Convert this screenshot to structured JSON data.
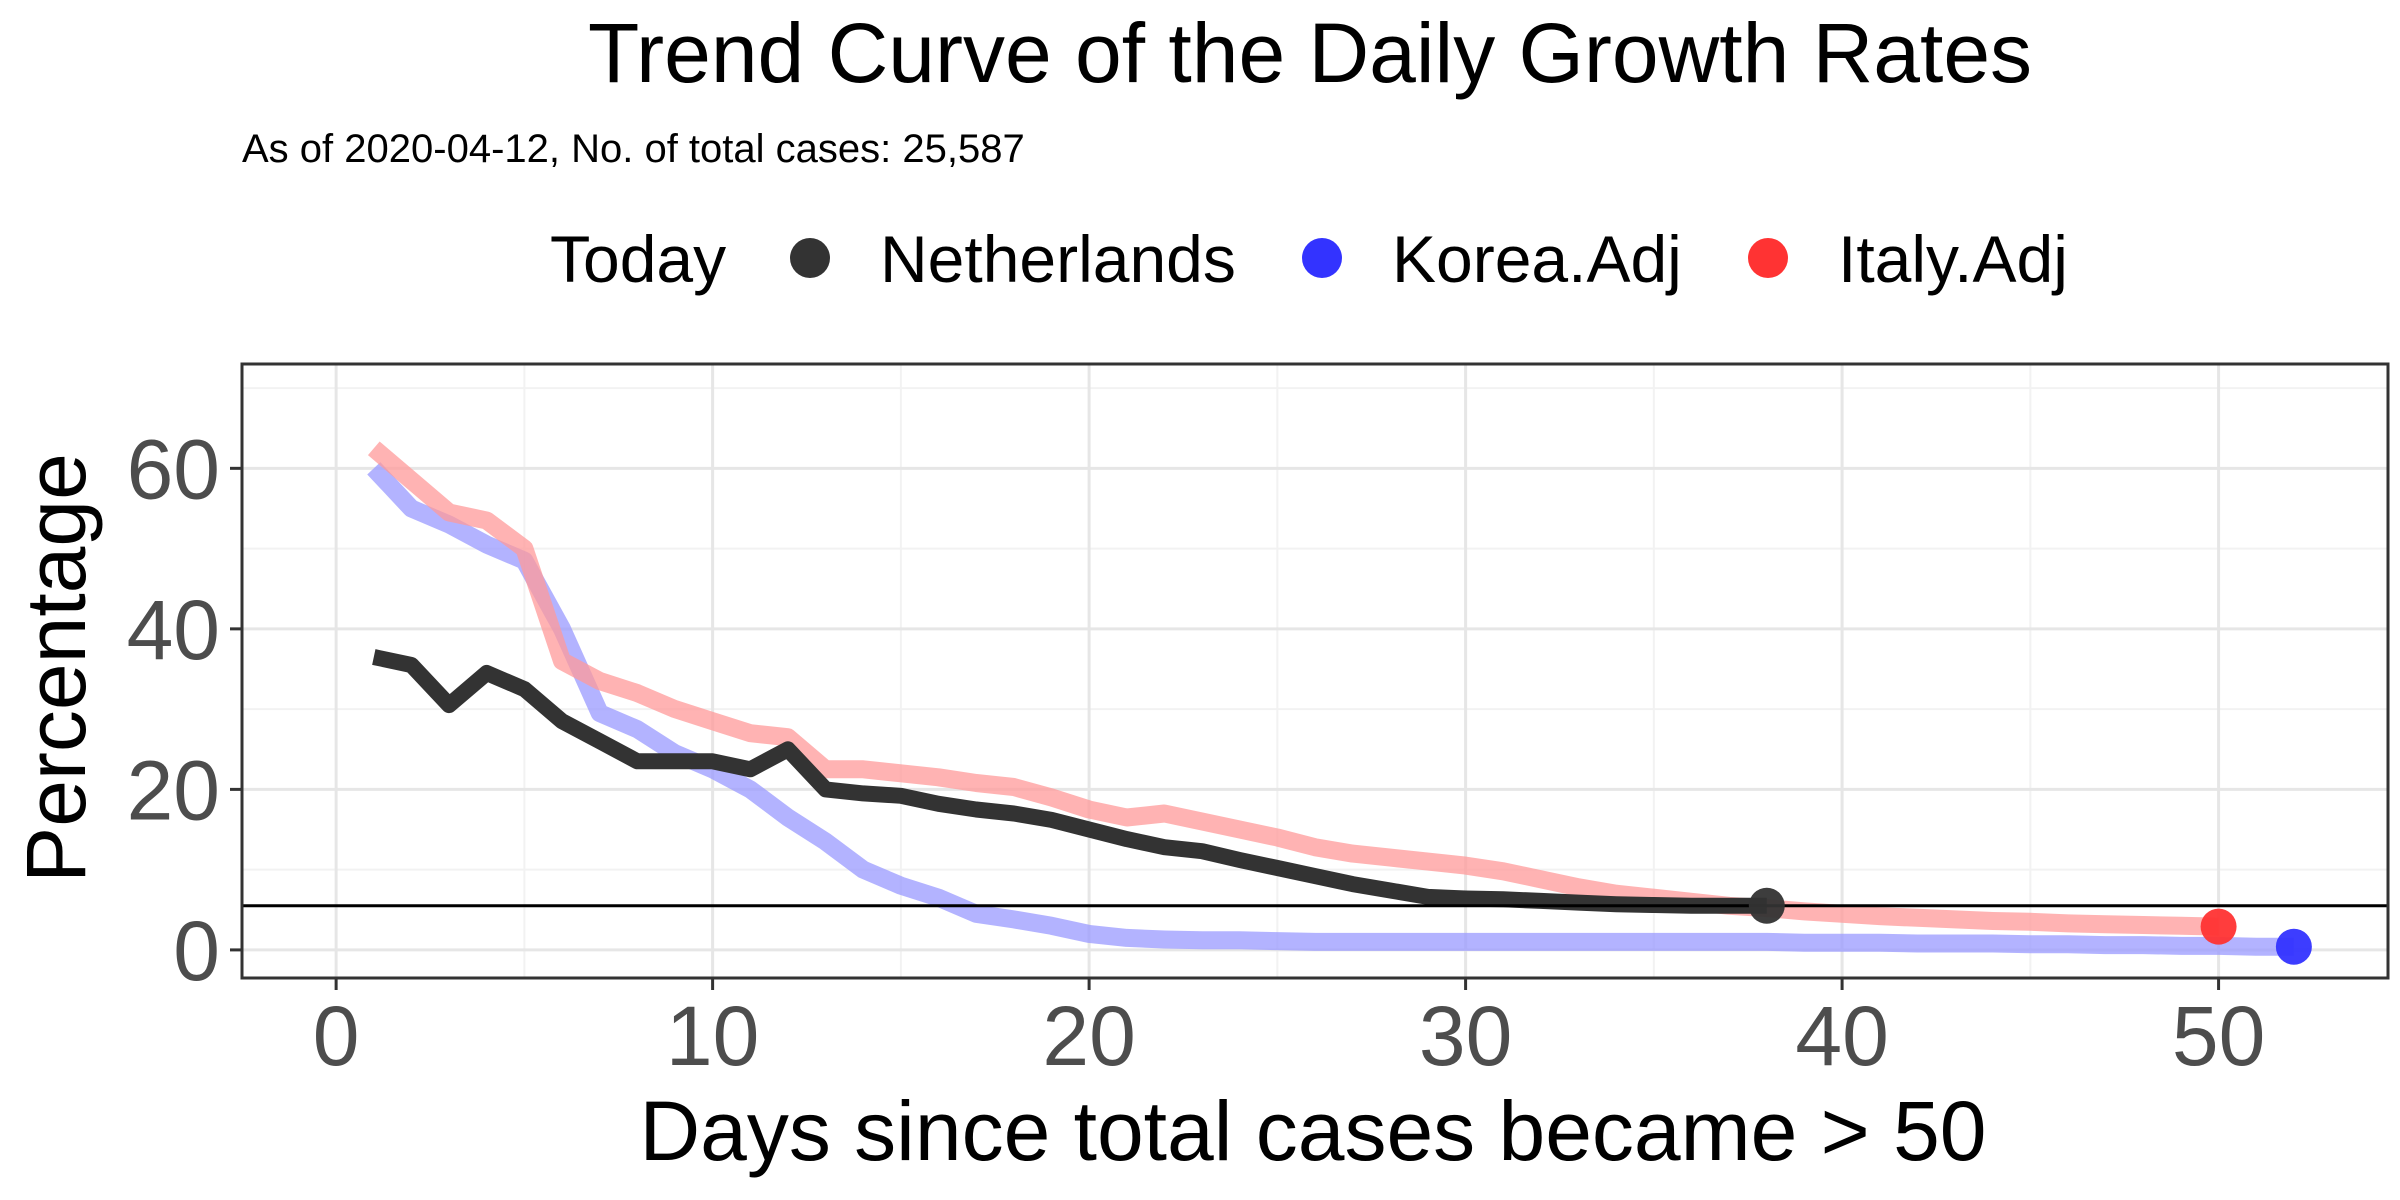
{
  "chart_data": {
    "type": "line",
    "title": "Trend Curve of the Daily Growth Rates",
    "subtitle": "As of 2020-04-12, No. of total cases: 25,587",
    "xlabel": "Days since total cases became > 50",
    "ylabel": "Percentage",
    "xlim": [
      -2.5,
      54.5
    ],
    "ylim": [
      -3.5,
      73
    ],
    "x_ticks": [
      0,
      10,
      20,
      30,
      40,
      50
    ],
    "y_ticks": [
      0,
      20,
      40,
      60
    ],
    "grid": true,
    "legend": {
      "position": "top",
      "title": "Today",
      "entries": [
        {
          "name": "Netherlands",
          "color": "#333333"
        },
        {
          "name": "Korea.Adj",
          "color": "#3333ff"
        },
        {
          "name": "Italy.Adj",
          "color": "#ff3333"
        }
      ]
    },
    "reference_line": {
      "y": 5.5,
      "color": "#000000"
    },
    "series": [
      {
        "name": "Korea.Adj",
        "color": "#9999ff",
        "marker_color": "#3333ff",
        "x": [
          1,
          2,
          3,
          4,
          5,
          6,
          7,
          8,
          9,
          10,
          11,
          12,
          13,
          14,
          15,
          16,
          17,
          18,
          19,
          20,
          21,
          22,
          23,
          24,
          25,
          26,
          27,
          28,
          29,
          30,
          31,
          32,
          33,
          34,
          35,
          36,
          37,
          38,
          39,
          40,
          41,
          42,
          43,
          44,
          45,
          46,
          47,
          48,
          49,
          50,
          51,
          52
        ],
        "values": [
          60,
          55,
          53,
          50.5,
          48.5,
          40,
          29.5,
          27.5,
          24.5,
          22.5,
          20,
          16.5,
          13.5,
          10,
          8,
          6.5,
          4.5,
          3.8,
          3,
          2,
          1.5,
          1.3,
          1.2,
          1.2,
          1.1,
          1,
          1,
          1,
          1,
          1,
          1,
          1,
          1,
          1,
          1,
          1,
          1,
          1,
          0.9,
          0.9,
          0.9,
          0.8,
          0.8,
          0.8,
          0.7,
          0.7,
          0.6,
          0.6,
          0.5,
          0.5,
          0.4,
          0.4
        ],
        "today": {
          "x": 52,
          "y": 0.4
        }
      },
      {
        "name": "Italy.Adj",
        "color": "#ff9999",
        "marker_color": "#ff3333",
        "x": [
          1,
          2,
          3,
          4,
          5,
          6,
          7,
          8,
          9,
          10,
          11,
          12,
          13,
          14,
          15,
          16,
          17,
          18,
          19,
          20,
          21,
          22,
          23,
          24,
          25,
          26,
          27,
          28,
          29,
          30,
          31,
          32,
          33,
          34,
          35,
          36,
          37,
          38,
          39,
          40,
          41,
          42,
          43,
          44,
          45,
          46,
          47,
          48,
          49,
          50
        ],
        "values": [
          62.5,
          58.5,
          54.5,
          53.5,
          50,
          36,
          33.5,
          32,
          30,
          28.5,
          27,
          26.5,
          22.5,
          22.5,
          22,
          21.5,
          20.8,
          20.3,
          19,
          17.5,
          16.5,
          17,
          16,
          15,
          14,
          12.8,
          12,
          11.5,
          11,
          10.5,
          9.8,
          8.8,
          7.8,
          7,
          6.5,
          6,
          5.5,
          5.2,
          4.8,
          4.5,
          4.2,
          4,
          3.8,
          3.6,
          3.5,
          3.3,
          3.2,
          3.1,
          3,
          2.9
        ],
        "today": {
          "x": 50,
          "y": 2.9
        }
      },
      {
        "name": "Netherlands",
        "color": "#333333",
        "marker_color": "#333333",
        "x": [
          1,
          2,
          3,
          4,
          5,
          6,
          7,
          8,
          9,
          10,
          11,
          12,
          13,
          14,
          15,
          16,
          17,
          18,
          19,
          20,
          21,
          22,
          23,
          24,
          25,
          26,
          27,
          28,
          29,
          30,
          31,
          32,
          33,
          34,
          35,
          36,
          37,
          38
        ],
        "values": [
          36.5,
          35.5,
          30.5,
          34.5,
          32.5,
          28.5,
          26,
          23.5,
          23.5,
          23.5,
          22.5,
          25,
          20,
          19.5,
          19.2,
          18.2,
          17.5,
          17,
          16.2,
          15,
          13.8,
          12.8,
          12.3,
          11.2,
          10.2,
          9.2,
          8.2,
          7.4,
          6.6,
          6.4,
          6.3,
          6.1,
          5.9,
          5.7,
          5.6,
          5.5,
          5.5,
          5.5
        ],
        "today": {
          "x": 38,
          "y": 5.5
        }
      }
    ]
  }
}
